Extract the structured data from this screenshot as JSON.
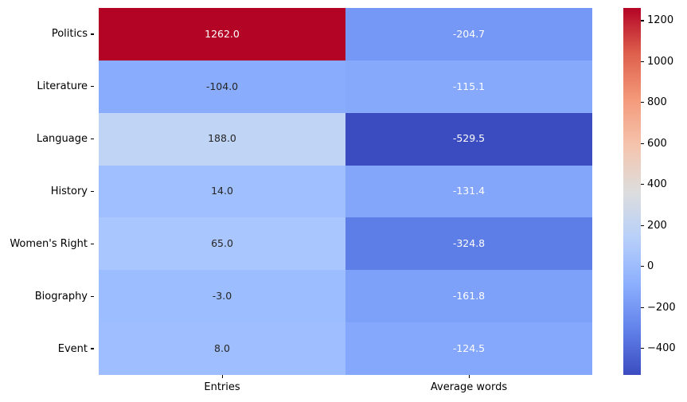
{
  "chart_data": {
    "type": "heatmap",
    "colormap": "coolwarm",
    "vmin": -529.5,
    "vmax": 1262.0,
    "grid": false,
    "legend_position": "colorbar-right",
    "columns": [
      "Entries",
      "Average words"
    ],
    "rows": [
      "Politics",
      "Literature",
      "Language",
      "History",
      "Women's Right",
      "Biography",
      "Event"
    ],
    "values": [
      [
        1262.0,
        -204.7
      ],
      [
        -104.0,
        -115.1
      ],
      [
        188.0,
        -529.5
      ],
      [
        14.0,
        -131.4
      ],
      [
        65.0,
        -324.8
      ],
      [
        -3.0,
        -161.8
      ],
      [
        8.0,
        -124.5
      ]
    ],
    "cell_labels": [
      [
        "1262.0",
        "-204.7"
      ],
      [
        "-104.0",
        "-115.1"
      ],
      [
        "188.0",
        "-529.5"
      ],
      [
        "14.0",
        "-131.4"
      ],
      [
        "65.0",
        "-324.8"
      ],
      [
        "-3.0",
        "-161.8"
      ],
      [
        "8.0",
        "-124.5"
      ]
    ],
    "cell_colors": [
      [
        "#b40426",
        "#7598f6"
      ],
      [
        "#89acfd",
        "#86a9fc"
      ],
      [
        "#c0d4f5",
        "#3b4cc0"
      ],
      [
        "#a0bfff",
        "#83a6fb"
      ],
      [
        "#aac6fe",
        "#5e7ee7"
      ],
      [
        "#9cbdff",
        "#7da0f9"
      ],
      [
        "#9fbeff",
        "#85a8fc"
      ]
    ],
    "cell_text_colors": [
      [
        "#ffffff",
        "#ffffff"
      ],
      [
        "#262626",
        "#ffffff"
      ],
      [
        "#262626",
        "#ffffff"
      ],
      [
        "#262626",
        "#ffffff"
      ],
      [
        "#262626",
        "#ffffff"
      ],
      [
        "#262626",
        "#ffffff"
      ],
      [
        "#262626",
        "#ffffff"
      ]
    ],
    "colorbar_ticks": [
      {
        "label": "1200",
        "value": 1200
      },
      {
        "label": "1000",
        "value": 1000
      },
      {
        "label": "800",
        "value": 800
      },
      {
        "label": "600",
        "value": 600
      },
      {
        "label": "400",
        "value": 400
      },
      {
        "label": "200",
        "value": 200
      },
      {
        "label": "0",
        "value": 0
      },
      {
        "label": "−200",
        "value": -200
      },
      {
        "label": "−400",
        "value": -400
      }
    ],
    "colorbar_gradient": [
      {
        "pos": 0,
        "color": "#b40426"
      },
      {
        "pos": 12.5,
        "color": "#de604d"
      },
      {
        "pos": 25,
        "color": "#f49a7b"
      },
      {
        "pos": 37.5,
        "color": "#f5c4ad"
      },
      {
        "pos": 50,
        "color": "#dddddd"
      },
      {
        "pos": 62.5,
        "color": "#b8d0f9"
      },
      {
        "pos": 75,
        "color": "#8db0fe"
      },
      {
        "pos": 87.5,
        "color": "#6282ea"
      },
      {
        "pos": 100,
        "color": "#3b4cc0"
      }
    ]
  }
}
